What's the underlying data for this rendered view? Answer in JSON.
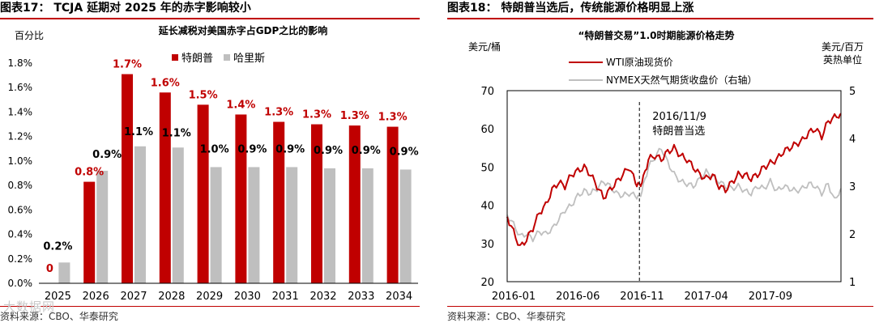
{
  "left": {
    "header": "图表17： TCJA 延期对 2025 年的赤字影响较小",
    "source": "资料来源：CBO、华泰研究",
    "watermark": "大数据网",
    "chart_data": {
      "type": "bar",
      "title": "延长减税对美国赤字占GDP之比的影响",
      "ylabel": "百分比",
      "xlabel": "",
      "ylim": [
        0,
        1.8
      ],
      "yticks": [
        "0.0%",
        "0.2%",
        "0.4%",
        "0.6%",
        "0.8%",
        "1.0%",
        "1.2%",
        "1.4%",
        "1.6%",
        "1.8%"
      ],
      "categories": [
        "2025",
        "2026",
        "2027",
        "2028",
        "2029",
        "2030",
        "2031",
        "2032",
        "2033",
        "2034"
      ],
      "series": [
        {
          "name": "特朗普",
          "color": "#c00000",
          "values": [
            0,
            0.83,
            1.71,
            1.56,
            1.46,
            1.38,
            1.32,
            1.3,
            1.29,
            1.28
          ],
          "labels": [
            "0",
            "0.8%",
            "1.7%",
            "1.6%",
            "1.5%",
            "1.4%",
            "1.3%",
            "1.3%",
            "1.3%",
            "1.3%"
          ]
        },
        {
          "name": "哈里斯",
          "color": "#bfbfbf",
          "values": [
            0.17,
            0.92,
            1.12,
            1.11,
            0.95,
            0.95,
            0.95,
            0.94,
            0.94,
            0.93
          ],
          "labels": [
            "0.2%",
            "0.9%",
            "1.1%",
            "1.1%",
            "1.0%",
            "0.9%",
            "0.9%",
            "0.9%",
            "0.9%",
            "0.9%"
          ]
        }
      ]
    }
  },
  "right": {
    "header": "图表18： 特朗普当选后，传统能源价格明显上涨",
    "source": "资料来源：CBO、华泰研究",
    "chart_data": {
      "type": "line",
      "title": "“特朗普交易”1.0时期能源价格走势",
      "ylabel_left": "美元/桶",
      "ylabel_right": "美元/百万英热单位",
      "ylim_left": [
        20,
        70
      ],
      "ylim_right": [
        1,
        5
      ],
      "yticks_left": [
        "20",
        "30",
        "40",
        "50",
        "60",
        "70"
      ],
      "yticks_right": [
        "1",
        "2",
        "3",
        "4",
        "5"
      ],
      "xtick_labels": [
        "2016-01",
        "2016-06",
        "2016-11",
        "2017-04",
        "2017-09"
      ],
      "x_index_range": [
        0,
        26
      ],
      "xtick_positions": [
        0,
        5,
        10,
        15,
        20
      ],
      "annotation": {
        "text_date": "2016/11/9",
        "text_label": "特朗普当选",
        "x": 10.3
      },
      "series": [
        {
          "name": "WTI原油现货价",
          "axis": "left",
          "color": "#c00000",
          "x": [
            0,
            0.5,
            1,
            1.5,
            2,
            2.5,
            3,
            3.5,
            4,
            4.5,
            5,
            5.5,
            6,
            6.5,
            7,
            7.5,
            8,
            8.5,
            9,
            9.5,
            10,
            10.3,
            10.6,
            11,
            11.5,
            12,
            12.5,
            13,
            13.5,
            14,
            14.5,
            15,
            15.5,
            16,
            16.5,
            17,
            17.5,
            18,
            18.5,
            19,
            19.5,
            20,
            20.5,
            21,
            21.5,
            22,
            22.5,
            23,
            23.5,
            24,
            24.5,
            25,
            25.5,
            26
          ],
          "y": [
            37,
            33,
            29,
            31,
            34,
            38,
            40,
            44,
            46,
            45,
            48,
            49,
            50,
            48,
            45,
            42,
            44,
            46,
            48,
            50,
            46,
            45,
            47,
            52,
            53,
            52,
            54,
            55,
            53,
            52,
            50,
            48,
            47,
            48,
            45,
            44,
            46,
            48,
            48,
            47,
            48,
            50,
            51,
            52,
            54,
            55,
            56,
            57,
            59,
            60,
            58,
            62,
            63,
            64
          ]
        },
        {
          "name": "NYMEX天然气期货收盘价（右轴）",
          "axis": "right",
          "color": "#bfbfbf",
          "x": [
            0,
            0.5,
            1,
            1.5,
            2,
            2.5,
            3,
            3.5,
            4,
            4.5,
            5,
            5.5,
            6,
            6.5,
            7,
            7.5,
            8,
            8.5,
            9,
            9.5,
            10,
            10.3,
            10.6,
            11,
            11.5,
            12,
            12.5,
            13,
            13.5,
            14,
            14.5,
            15,
            15.5,
            16,
            16.5,
            17,
            17.5,
            18,
            18.5,
            19,
            19.5,
            20,
            20.5,
            21,
            21.5,
            22,
            22.5,
            23,
            23.5,
            24,
            24.5,
            25,
            25.5,
            26
          ],
          "y": [
            2.4,
            2.2,
            1.95,
            2.0,
            1.9,
            2.05,
            2.0,
            2.1,
            2.3,
            2.5,
            2.6,
            2.8,
            2.9,
            2.85,
            2.95,
            3.1,
            3.0,
            2.85,
            2.8,
            2.85,
            2.8,
            2.75,
            3.0,
            3.4,
            3.6,
            3.8,
            3.5,
            3.25,
            3.1,
            3.05,
            3.0,
            3.15,
            3.3,
            3.2,
            3.1,
            3.0,
            2.95,
            3.0,
            2.9,
            2.85,
            3.0,
            2.95,
            3.1,
            2.9,
            3.0,
            2.95,
            2.9,
            2.95,
            3.05,
            3.0,
            2.85,
            3.05,
            2.7,
            2.95
          ]
        }
      ]
    }
  }
}
